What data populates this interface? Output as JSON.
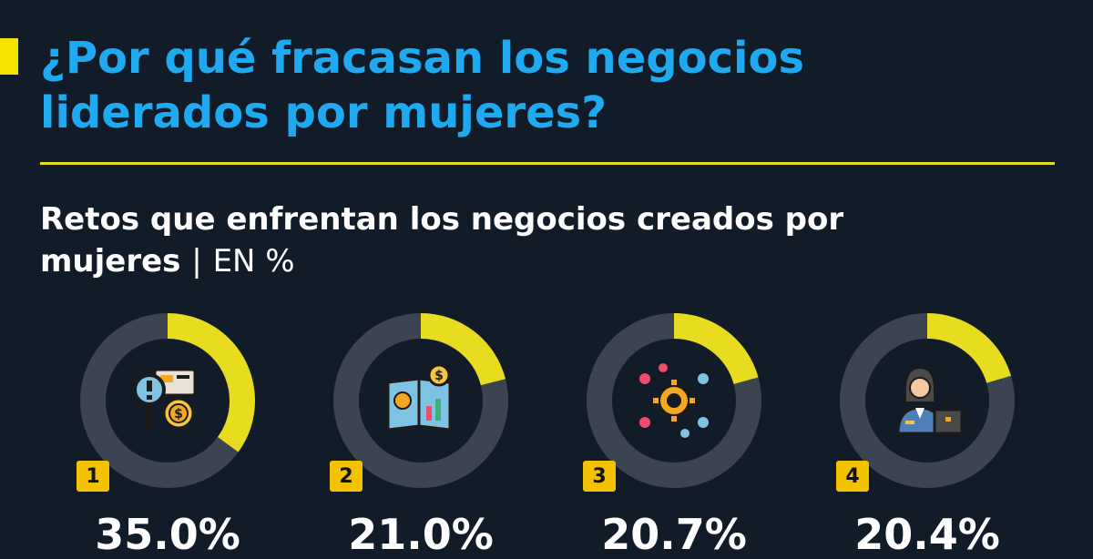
{
  "header": {
    "title": "¿Por qué fracasan los negocios liderados por mujeres?"
  },
  "subheader": {
    "title": "Retos que enfrentan los negocios creados por mujeres",
    "separator": "|",
    "unit": "EN %"
  },
  "colors": {
    "background": "#121b28",
    "title": "#1fa9f0",
    "accent": "#e8dc21",
    "ring_track": "#3c4452",
    "rank_badge": "#f2c200"
  },
  "chart_data": {
    "type": "donut",
    "title": "Retos que enfrentan los negocios creados por mujeres",
    "unit": "EN %",
    "items": [
      {
        "rank": "1",
        "value": 35.0,
        "label": "35.0%",
        "icon": "search-money-icon"
      },
      {
        "rank": "2",
        "value": 21.0,
        "label": "21.0%",
        "icon": "finance-report-icon"
      },
      {
        "rank": "3",
        "value": 20.7,
        "label": "20.7%",
        "icon": "gear-process-icon"
      },
      {
        "rank": "4",
        "value": 20.4,
        "label": "20.4%",
        "icon": "businesswoman-icon"
      }
    ],
    "max": 100
  }
}
